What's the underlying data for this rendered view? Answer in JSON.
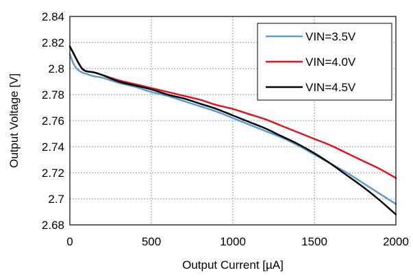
{
  "chart_data": {
    "type": "line",
    "title": "",
    "xlabel": "Output Current [µA]",
    "ylabel": "Output Voltage [V]",
    "xlim": [
      0,
      2000
    ],
    "ylim": [
      2.68,
      2.84
    ],
    "xticks": [
      0,
      500,
      1000,
      1500,
      2000
    ],
    "xtick_labels": [
      "0",
      "500",
      "1000",
      "1500",
      "2000"
    ],
    "yticks": [
      2.68,
      2.7,
      2.72,
      2.74,
      2.76,
      2.78,
      2.8,
      2.82,
      2.84
    ],
    "ytick_labels": [
      "2.68",
      "2.7",
      "2.72",
      "2.74",
      "2.76",
      "2.78",
      "2.8",
      "2.82",
      "2.84"
    ],
    "grid": true,
    "legend_position": "top-right",
    "series": [
      {
        "name": "VIN=3.5V",
        "color": "#5b9bd5",
        "x": [
          0,
          25,
          50,
          75,
          100,
          150,
          200,
          300,
          400,
          500,
          600,
          700,
          800,
          900,
          1000,
          1100,
          1200,
          1300,
          1400,
          1500,
          1600,
          1700,
          1800,
          1900,
          2000
        ],
        "y": [
          2.811,
          2.803,
          2.799,
          2.797,
          2.796,
          2.794,
          2.793,
          2.789,
          2.786,
          2.782,
          2.779,
          2.775,
          2.771,
          2.767,
          2.762,
          2.757,
          2.752,
          2.747,
          2.741,
          2.734,
          2.727,
          2.72,
          2.712,
          2.704,
          2.696
        ]
      },
      {
        "name": "VIN=4.0V",
        "color": "#e8101e",
        "x": [
          0,
          25,
          50,
          75,
          100,
          150,
          200,
          300,
          400,
          500,
          600,
          700,
          800,
          900,
          1000,
          1100,
          1200,
          1300,
          1400,
          1500,
          1600,
          1700,
          1800,
          1900,
          2000
        ],
        "y": [
          2.817,
          2.811,
          2.805,
          2.8,
          2.798,
          2.797,
          2.795,
          2.791,
          2.788,
          2.785,
          2.782,
          2.779,
          2.776,
          2.772,
          2.769,
          2.765,
          2.761,
          2.756,
          2.751,
          2.746,
          2.741,
          2.735,
          2.729,
          2.723,
          2.716
        ]
      },
      {
        "name": "VIN=4.5V",
        "color": "#000000",
        "x": [
          0,
          25,
          50,
          75,
          100,
          150,
          200,
          300,
          400,
          500,
          600,
          700,
          800,
          900,
          1000,
          1100,
          1200,
          1300,
          1400,
          1500,
          1600,
          1700,
          1800,
          1900,
          2000
        ],
        "y": [
          2.817,
          2.811,
          2.805,
          2.8,
          2.798,
          2.797,
          2.795,
          2.79,
          2.787,
          2.784,
          2.78,
          2.777,
          2.773,
          2.769,
          2.764,
          2.759,
          2.754,
          2.748,
          2.742,
          2.735,
          2.727,
          2.718,
          2.709,
          2.699,
          2.688
        ]
      }
    ]
  }
}
